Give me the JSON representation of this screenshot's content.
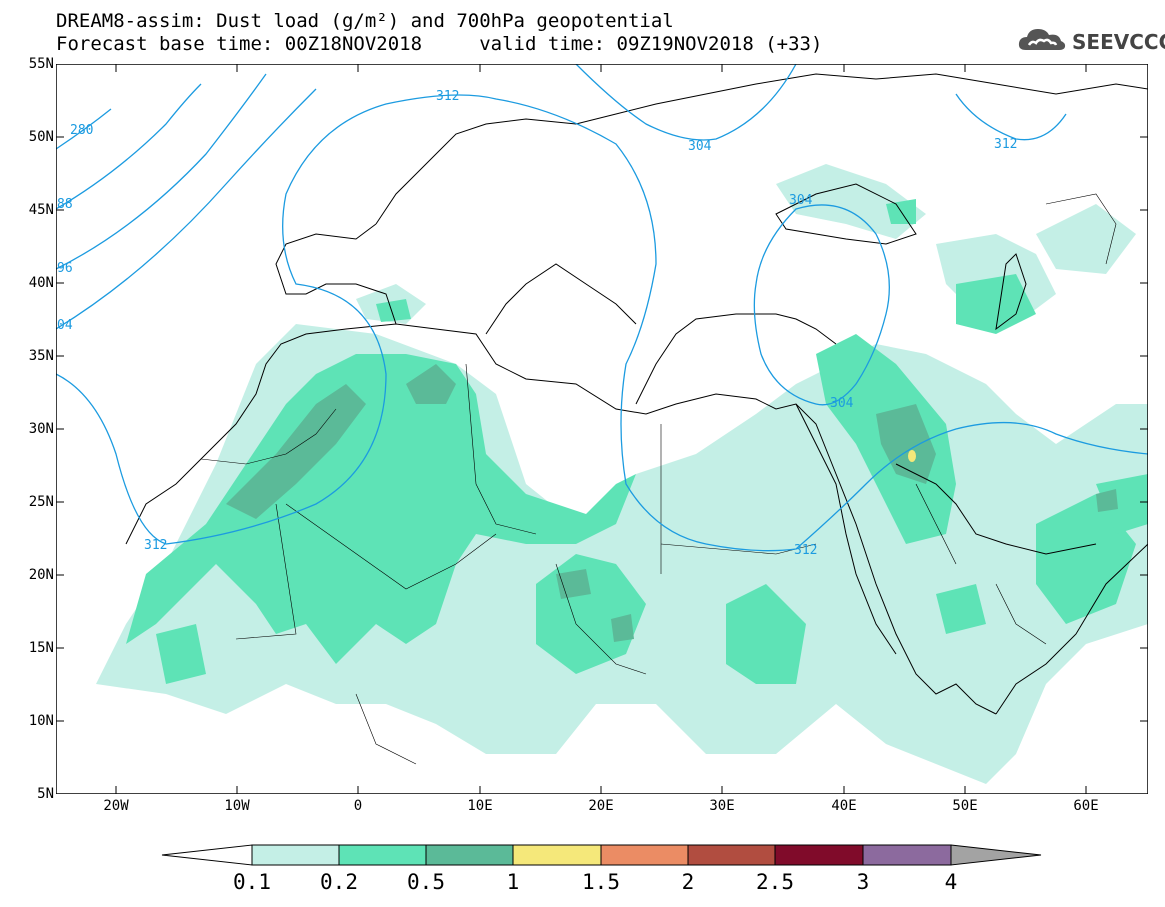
{
  "title": {
    "line1": "DREAM8-assim: Dust load (g/m²) and 700hPa geopotential",
    "line2": "Forecast base time: 00Z18NOV2018     valid time: 09Z19NOV2018 (+33)"
  },
  "logo": {
    "text": "SEEVCCC",
    "icon": "cloud-icon"
  },
  "map": {
    "lon_range": [
      -25,
      65
    ],
    "lat_range": [
      5,
      55
    ],
    "lat_ticks": [
      "55N",
      "50N",
      "45N",
      "40N",
      "35N",
      "30N",
      "25N",
      "20N",
      "15N",
      "10N",
      "5N"
    ],
    "lon_ticks": [
      "20W",
      "10W",
      "0",
      "10E",
      "20E",
      "30E",
      "40E",
      "50E",
      "60E"
    ],
    "contour_labels": [
      "280",
      "88",
      "96",
      "04",
      "312",
      "304",
      "304",
      "312",
      "304",
      "312",
      "312"
    ],
    "contour_color": "#1c9be0"
  },
  "colorbar": {
    "labels": [
      "0.1",
      "0.2",
      "0.5",
      "1",
      "1.5",
      "2",
      "2.5",
      "3",
      "4"
    ],
    "colors": [
      "#c4efe6",
      "#5ee3b6",
      "#5bba98",
      "#f5e87a",
      "#eb8c64",
      "#b14d40",
      "#800b2a",
      "#8c6a9e"
    ],
    "under_color": "#ffffff",
    "over_color": "#a3a3a3"
  }
}
